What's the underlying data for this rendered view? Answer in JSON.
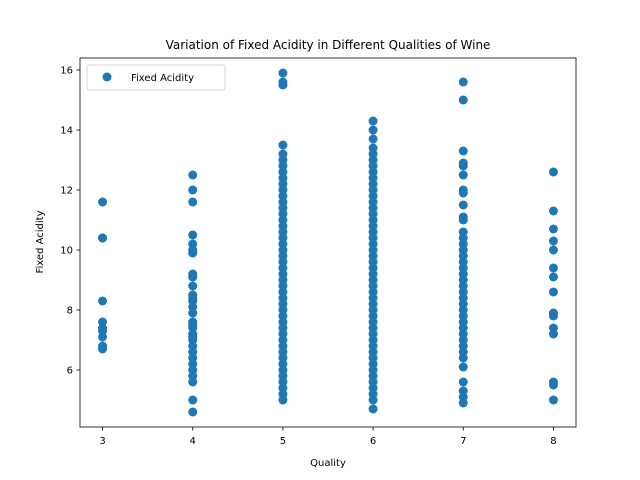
{
  "chart_data": {
    "type": "scatter",
    "title": "Variation of Fixed Acidity in Different Qualities of Wine",
    "xlabel": "Quality",
    "ylabel": "Fixed Acidity",
    "xlim": [
      2.75,
      8.25
    ],
    "ylim": [
      4.1,
      16.4
    ],
    "xticks": [
      "3",
      "4",
      "5",
      "6",
      "7",
      "8"
    ],
    "yticks": [
      "6",
      "8",
      "10",
      "12",
      "14",
      "16"
    ],
    "grid": false,
    "legend_position": "upper-left",
    "color": "#1f77b4",
    "series": [
      {
        "name": "Fixed Acidity",
        "groups": [
          {
            "x": 3,
            "y": [
              6.7,
              6.8,
              7.1,
              7.3,
              7.4,
              7.6,
              8.3,
              10.4,
              10.4,
              11.6
            ]
          },
          {
            "x": 4,
            "y": [
              4.6,
              5.0,
              5.6,
              5.8,
              6.0,
              6.2,
              6.4,
              6.6,
              6.8,
              7.0,
              7.1,
              7.2,
              7.4,
              7.5,
              7.6,
              7.9,
              8.1,
              8.3,
              8.4,
              8.5,
              8.8,
              9.1,
              9.2,
              9.9,
              10.0,
              10.2,
              10.5,
              11.6,
              12.0,
              12.5
            ]
          },
          {
            "x": 5,
            "y": [
              5.0,
              5.2,
              5.4,
              5.6,
              5.8,
              6.0,
              6.2,
              6.4,
              6.6,
              6.8,
              7.0,
              7.2,
              7.4,
              7.6,
              7.8,
              8.0,
              8.2,
              8.4,
              8.6,
              8.8,
              9.0,
              9.2,
              9.4,
              9.6,
              9.8,
              10.0,
              10.2,
              10.4,
              10.6,
              10.8,
              11.0,
              11.2,
              11.4,
              11.6,
              11.8,
              12.0,
              12.2,
              12.4,
              12.6,
              12.8,
              13.0,
              13.2,
              13.5,
              15.5,
              15.6,
              15.9
            ]
          },
          {
            "x": 6,
            "y": [
              4.7,
              5.0,
              5.2,
              5.4,
              5.6,
              5.8,
              6.0,
              6.2,
              6.4,
              6.6,
              6.8,
              7.0,
              7.2,
              7.4,
              7.6,
              7.8,
              8.0,
              8.2,
              8.4,
              8.6,
              8.8,
              9.0,
              9.2,
              9.4,
              9.6,
              9.8,
              10.0,
              10.2,
              10.4,
              10.6,
              10.8,
              11.0,
              11.2,
              11.4,
              11.6,
              11.8,
              12.0,
              12.2,
              12.4,
              12.6,
              12.8,
              13.0,
              13.2,
              13.4,
              13.7,
              14.0,
              14.3
            ]
          },
          {
            "x": 7,
            "y": [
              4.9,
              5.1,
              5.3,
              5.6,
              6.1,
              6.4,
              6.6,
              6.8,
              7.0,
              7.2,
              7.4,
              7.6,
              7.8,
              8.0,
              8.2,
              8.4,
              8.6,
              8.8,
              9.0,
              9.2,
              9.4,
              9.6,
              9.8,
              10.0,
              10.2,
              10.4,
              10.6,
              11.0,
              11.1,
              11.5,
              11.9,
              12.0,
              12.5,
              12.8,
              12.9,
              13.3,
              15.0,
              15.6
            ]
          },
          {
            "x": 8,
            "y": [
              5.0,
              5.5,
              5.6,
              7.2,
              7.4,
              7.8,
              7.9,
              8.6,
              9.1,
              9.4,
              10.0,
              10.3,
              10.7,
              11.3,
              12.6
            ]
          }
        ]
      }
    ]
  }
}
